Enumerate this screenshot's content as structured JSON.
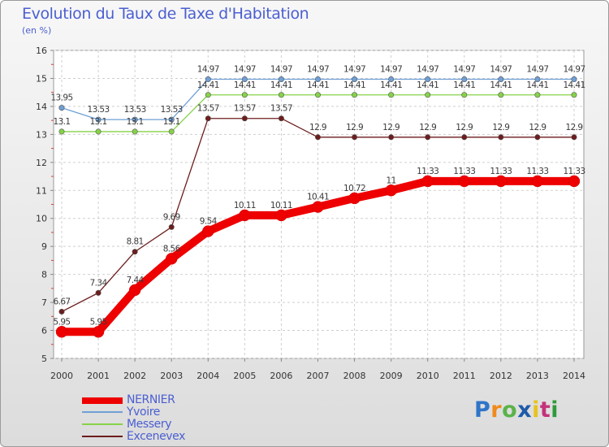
{
  "chart_data": {
    "type": "line",
    "title": "Evolution du Taux de Taxe d'Habitation",
    "subtitle": "(en %)",
    "xlabel": "",
    "ylabel": "",
    "categories": [
      "2000",
      "2001",
      "2002",
      "2003",
      "2004",
      "2005",
      "2006",
      "2007",
      "2008",
      "2009",
      "2010",
      "2011",
      "2012",
      "2013",
      "2014"
    ],
    "ylim": [
      5,
      16
    ],
    "yticks": [
      "5",
      "6",
      "7",
      "8",
      "9",
      "10",
      "11",
      "12",
      "13",
      "14",
      "15",
      "16"
    ],
    "grid": true,
    "legend_position": "bottom-left",
    "series": [
      {
        "name": "Excenevex",
        "color": "#6d1d1d",
        "values": [
          6.67,
          7.34,
          8.81,
          9.69,
          13.57,
          13.57,
          13.57,
          12.9,
          12.9,
          12.9,
          12.9,
          12.9,
          12.9,
          12.9,
          12.9
        ],
        "labels": [
          "6.67",
          "7.34",
          "8.81",
          "9.69",
          "13.57",
          "13.57",
          "13.57",
          "12.9",
          "12.9",
          "12.9",
          "12.9",
          "12.9",
          "12.9",
          "12.9",
          "12.9"
        ]
      },
      {
        "name": "Messery",
        "color": "#86d249",
        "values": [
          13.1,
          13.1,
          13.1,
          13.1,
          14.41,
          14.41,
          14.41,
          14.41,
          14.41,
          14.41,
          14.41,
          14.41,
          14.41,
          14.41,
          14.41
        ],
        "labels": [
          "13.1",
          "13.1",
          "13.1",
          "13.1",
          "14.41",
          "14.41",
          "14.41",
          "14.41",
          "14.41",
          "14.41",
          "14.41",
          "14.41",
          "14.41",
          "14.41",
          "14.41"
        ]
      },
      {
        "name": "Yvoire",
        "color": "#6f9fd6",
        "values": [
          13.95,
          13.53,
          13.53,
          13.53,
          14.97,
          14.97,
          14.97,
          14.97,
          14.97,
          14.97,
          14.97,
          14.97,
          14.97,
          14.97,
          14.97
        ],
        "labels": [
          "13.95",
          "13.53",
          "13.53",
          "13.53",
          "14.97",
          "14.97",
          "14.97",
          "14.97",
          "14.97",
          "14.97",
          "14.97",
          "14.97",
          "14.97",
          "14.97",
          "14.97"
        ]
      },
      {
        "name": "NERNIER",
        "color": "#ee0000",
        "values": [
          5.95,
          5.95,
          7.44,
          8.56,
          9.54,
          10.11,
          10.11,
          10.41,
          10.72,
          11,
          11.33,
          11.33,
          11.33,
          11.33,
          11.33
        ],
        "labels": [
          "5.95",
          "5.95",
          "7.44",
          "8.56",
          "9.54",
          "10.11",
          "10.11",
          "10.41",
          "10.72",
          "11",
          "11.33",
          "11.33",
          "11.33",
          "11.33",
          "11.33"
        ]
      }
    ]
  },
  "legend": {
    "items": [
      {
        "name": "NERNIER",
        "color": "#ee0000"
      },
      {
        "name": "Yvoire",
        "color": "#6f9fd6"
      },
      {
        "name": "Messery",
        "color": "#86d249"
      },
      {
        "name": "Excenevex",
        "color": "#6d1d1d"
      }
    ]
  },
  "brand": {
    "letters": [
      "P",
      "r",
      "o",
      "x",
      "i",
      "t",
      "i"
    ],
    "colors": [
      "#2f74c9",
      "#f08a1c",
      "#5bb34a",
      "#1f5aa8",
      "#e8c21d",
      "#c3327a",
      "#2f9a3b"
    ]
  }
}
